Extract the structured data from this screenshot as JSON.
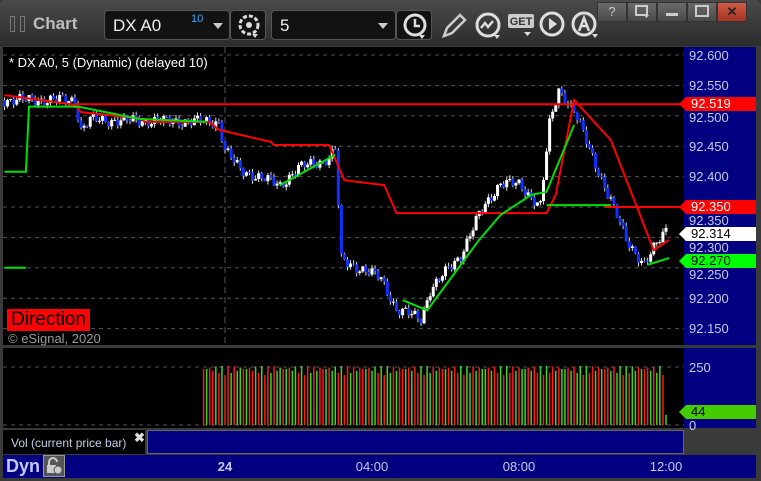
{
  "window": {
    "title": "Chart",
    "help": "?",
    "close": "✕"
  },
  "toolbar": {
    "symbol": "DX A0",
    "symbol_badge": "10",
    "interval": "5",
    "icons": [
      "settings-gear-icon",
      "clock-icon",
      "pencil-icon",
      "study-icon",
      "get-icon",
      "play-icon",
      "alert-icon"
    ],
    "get_label": "GET"
  },
  "chart": {
    "legend": "* DX A0, 5 (Dynamic) (delayed 10)",
    "direction_label": "Direction",
    "copyright": "© eSignal, 2020",
    "price_ticks": [
      "92.600",
      "92.550",
      "92.500",
      "92.450",
      "92.400",
      "92.350",
      "92.300",
      "92.250",
      "92.200",
      "92.150"
    ],
    "price_range": [
      92.15,
      92.6
    ],
    "tags": [
      {
        "value": "92.519",
        "price": 92.519,
        "bg": "#ff0000",
        "fg": "#ffffff"
      },
      {
        "value": "92.350",
        "price": 92.35,
        "bg": "#ff0000",
        "fg": "#ffffff"
      },
      {
        "value": "92.314",
        "price": 92.314,
        "bg": "#ffffff",
        "fg": "#000000"
      },
      {
        "value": "92.270",
        "price": 92.27,
        "bg": "#00ff00",
        "fg": "#000000"
      }
    ],
    "price_path": [
      [
        "23 18:00",
        92.526
      ],
      [
        "23 19:55",
        92.526
      ],
      [
        "23 20:05",
        92.477
      ],
      [
        "23 20:20",
        92.493
      ],
      [
        "23 23:50",
        92.49
      ],
      [
        "24 00:00",
        92.444
      ],
      [
        "24 00:25",
        92.411
      ],
      [
        "24 01:30",
        92.386
      ],
      [
        "24 02:00",
        92.414
      ],
      [
        "24 02:50",
        92.43
      ],
      [
        "24 03:00",
        92.444
      ],
      [
        "24 03:10",
        92.263
      ],
      [
        "24 04:15",
        92.233
      ],
      [
        "24 04:40",
        92.181
      ],
      [
        "24 05:20",
        92.167
      ],
      [
        "24 05:35",
        92.213
      ],
      [
        "24 06:25",
        92.271
      ],
      [
        "24 06:55",
        92.337
      ],
      [
        "24 07:30",
        92.391
      ],
      [
        "24 08:00",
        92.386
      ],
      [
        "24 08:35",
        92.353
      ],
      [
        "24 08:50",
        92.485
      ],
      [
        "24 09:05",
        92.542
      ],
      [
        "24 09:30",
        92.51
      ],
      [
        "24 09:55",
        92.444
      ],
      [
        "24 10:30",
        92.361
      ],
      [
        "24 10:55",
        92.296
      ],
      [
        "24 11:25",
        92.255
      ],
      [
        "24 12:00",
        92.314
      ]
    ],
    "red_lines": [
      [
        [
          "23 18:00",
          92.534
        ],
        [
          "23 19:55",
          92.518
        ],
        [
          "23 20:05",
          92.506
        ],
        [
          "23 21:40",
          92.496
        ],
        [
          "23 21:50",
          92.49
        ],
        [
          "23 23:35",
          92.49
        ],
        [
          "23 23:50",
          92.477
        ],
        [
          "24 01:15",
          92.457
        ],
        [
          "24 01:20",
          92.452
        ],
        [
          "24 02:50",
          92.452
        ],
        [
          "24 03:15",
          92.394
        ],
        [
          "24 04:20",
          92.386
        ],
        [
          "24 04:40",
          92.34
        ],
        [
          "24 08:45",
          92.34
        ],
        [
          "24 09:00",
          92.37
        ],
        [
          "24 09:30",
          92.526
        ],
        [
          "24 10:30",
          92.46
        ],
        [
          "24 11:40",
          92.279
        ],
        [
          "24 12:05",
          92.296
        ]
      ],
      [
        [
          "23 19:55",
          92.519
        ],
        [
          "24 12:25",
          92.519
        ]
      ],
      [
        [
          "24 10:20",
          92.35
        ],
        [
          "24 12:25",
          92.35
        ]
      ]
    ],
    "green_lines": [
      [
        [
          "23 18:00",
          92.408
        ],
        [
          "23 18:35",
          92.408
        ],
        [
          "23 18:40",
          92.515
        ],
        [
          "23 20:00",
          92.515
        ],
        [
          "23 21:40",
          92.495
        ],
        [
          "23 23:30",
          92.49
        ]
      ],
      [
        [
          "24 01:30",
          92.386
        ],
        [
          "24 03:00",
          92.436
        ]
      ],
      [
        [
          "24 04:50",
          92.197
        ],
        [
          "24 05:30",
          92.18
        ],
        [
          "24 06:25",
          92.255
        ],
        [
          "24 06:55",
          92.296
        ],
        [
          "24 07:30",
          92.337
        ],
        [
          "24 08:20",
          92.37
        ],
        [
          "24 08:45",
          92.375
        ],
        [
          "24 09:30",
          92.485
        ]
      ],
      [
        [
          "24 08:45",
          92.353
        ],
        [
          "24 10:30",
          92.353
        ]
      ],
      [
        [
          "24 11:30",
          92.255
        ],
        [
          "24 12:05",
          92.266
        ]
      ],
      [
        [
          "23 18:00",
          92.25
        ],
        [
          "23 18:35",
          92.25
        ]
      ]
    ],
    "colors": {
      "up": "#ffffff",
      "down": "#1030ff",
      "upper": "#ff0000",
      "lower": "#00e000",
      "axis_bg": "#000080"
    }
  },
  "volume": {
    "label": "Vol (current price bar)",
    "ticks": [
      "250",
      "0"
    ],
    "range": [
      0,
      250
    ],
    "last": "44",
    "last_value": 44,
    "start": "23 23:25"
  },
  "time_axis": {
    "mode": "Dyn",
    "labels": [
      {
        "text": "24",
        "t": "24 00:00"
      },
      {
        "text": "04:00",
        "t": "24 04:00"
      },
      {
        "text": "08:00",
        "t": "24 08:00"
      },
      {
        "text": "12:00",
        "t": "24 12:00"
      }
    ]
  }
}
